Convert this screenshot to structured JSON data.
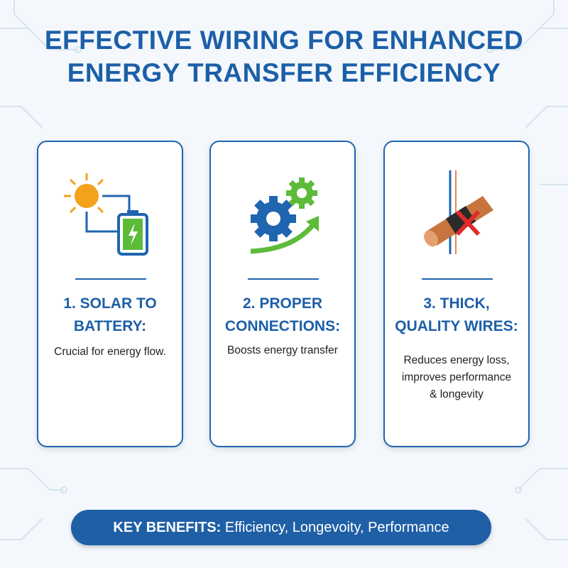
{
  "header": {
    "title_lines": [
      "EFFECTIVE WIRING FOR ENHANCED",
      "ENERGY TRANSFER EFFICIENCY"
    ]
  },
  "cards": [
    {
      "heading_lines": [
        "1. SOLAR TO",
        "BATTERY:"
      ],
      "body_lines": [
        "Crucial for energy flow."
      ]
    },
    {
      "heading_lines": [
        "2. PROPER",
        "CONNECTIONS:"
      ],
      "body_lines": [
        "Boosts energy transfer"
      ]
    },
    {
      "heading_lines": [
        "3. THICK,",
        "QUALITY WIRES:"
      ],
      "body_lines": [
        "Reduces energy loss,",
        "improves performance",
        "& longevity"
      ]
    }
  ],
  "footer": {
    "label": "KEY BENEFITS:",
    "text": "Efficiency, Longevoity, Performance"
  }
}
